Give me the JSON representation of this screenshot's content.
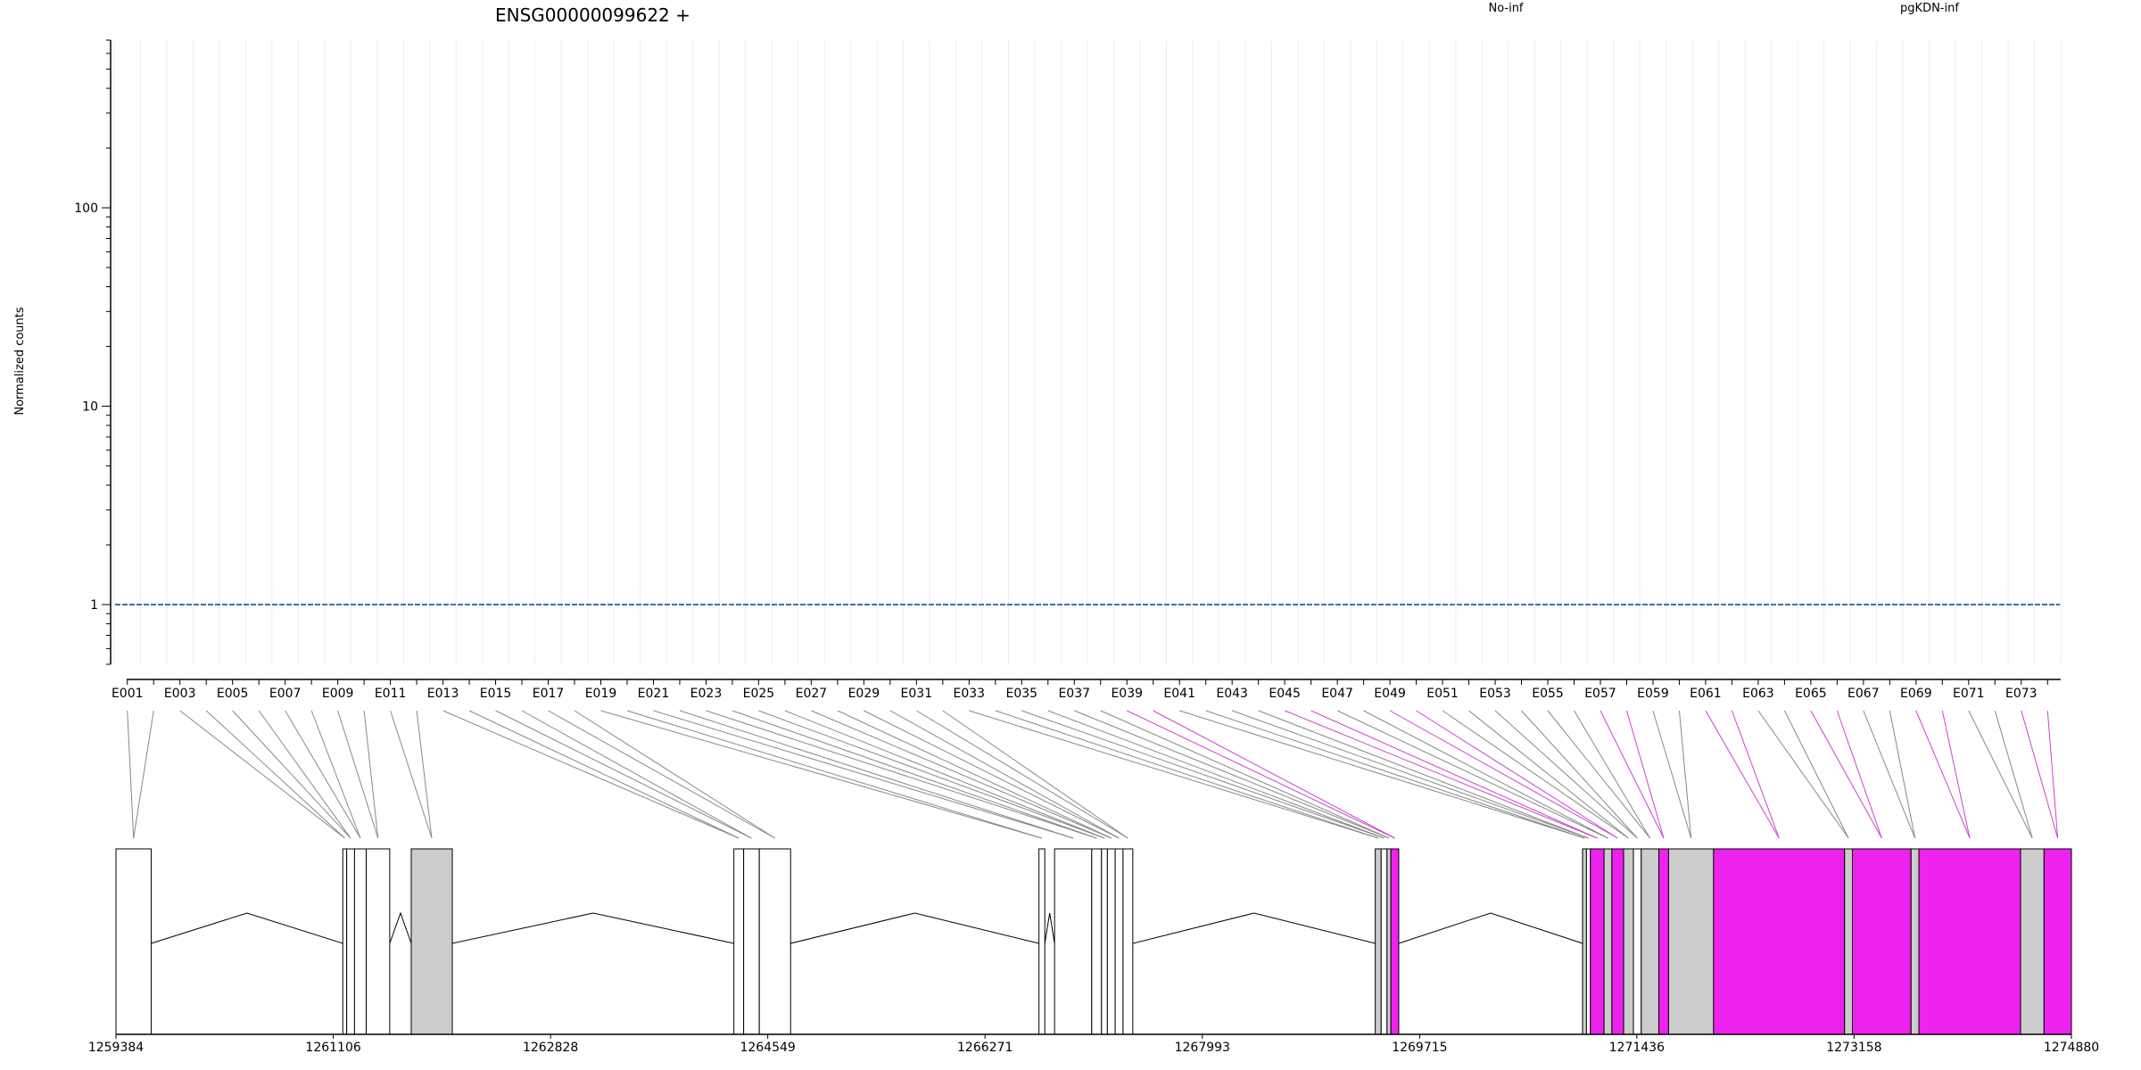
{
  "header": {
    "title": "ENSG00000099622 +",
    "legend": [
      {
        "label": "No-inf",
        "color": "#d7191c"
      },
      {
        "label": "pgKDN-inf",
        "color": "#2c7bb6"
      }
    ]
  },
  "chart_data": {
    "type": "line",
    "ylabel": "Normalized counts",
    "yscale": "log",
    "ylim": [
      0.5,
      700
    ],
    "y_ticks": [
      {
        "label": "1",
        "value": 1
      },
      {
        "label": "10",
        "value": 10
      },
      {
        "label": "100",
        "value": 100
      }
    ],
    "exon_labels": [
      "E001",
      "E003",
      "E005",
      "E007",
      "E009",
      "E011",
      "E013",
      "E015",
      "E017",
      "E019",
      "E021",
      "E023",
      "E025",
      "E027",
      "E029",
      "E031",
      "E033",
      "E035",
      "E037",
      "E039",
      "E041",
      "E043",
      "E045",
      "E047",
      "E049",
      "E051",
      "E053",
      "E055",
      "E057",
      "E059",
      "E061",
      "E063",
      "E065",
      "E067",
      "E069",
      "E071",
      "E073"
    ],
    "exon_count": 74,
    "series": [
      {
        "name": "No-inf",
        "color": "#d7191c",
        "replicates": [
          [
            1,
            1,
            1,
            1,
            1,
            1,
            1,
            1,
            1,
            1,
            1,
            1,
            1,
            1,
            1,
            1,
            1,
            1,
            1,
            1,
            1,
            1,
            1,
            1,
            1,
            1,
            1,
            1,
            1,
            1,
            1,
            1,
            1,
            1,
            1,
            1,
            1,
            1,
            1,
            1,
            1,
            1,
            1,
            1,
            1,
            1,
            1,
            1,
            1,
            1,
            1,
            1,
            1,
            1,
            1,
            1,
            1,
            1,
            1,
            1,
            1,
            1,
            1,
            1,
            1,
            1,
            1,
            1,
            1,
            1,
            1,
            1,
            1,
            1
          ],
          [
            1,
            1,
            1,
            1,
            1,
            1,
            1,
            1,
            1,
            1,
            1,
            1,
            1,
            1,
            1,
            1,
            1,
            1,
            1,
            1,
            1,
            1,
            1,
            1,
            1,
            1,
            1,
            1,
            1,
            1,
            1,
            1,
            1,
            1,
            1,
            1,
            1,
            1,
            1,
            1,
            1,
            1,
            1,
            1,
            1,
            1,
            1,
            1,
            1,
            1,
            1,
            1,
            1,
            1,
            1,
            1,
            1,
            1,
            1,
            1,
            1,
            1,
            1,
            1,
            1,
            1,
            1,
            1,
            1,
            1,
            1,
            1,
            1,
            1
          ],
          [
            1,
            1,
            1,
            1,
            1,
            1,
            1,
            1,
            1,
            1,
            1,
            1,
            1,
            1,
            1,
            1,
            1,
            1,
            1,
            1,
            1,
            1,
            1,
            1,
            1,
            1,
            1,
            1,
            1,
            1,
            1,
            1,
            1,
            1,
            1,
            1,
            1,
            1,
            1,
            1,
            1,
            1,
            1,
            1,
            1,
            1,
            1,
            1,
            1,
            1,
            1,
            1,
            1,
            1,
            1,
            1,
            1,
            1,
            1,
            1,
            1,
            1,
            1,
            1,
            1,
            1,
            1,
            1,
            1,
            1,
            1,
            1,
            1,
            1
          ],
          [
            1,
            1,
            1,
            1,
            1,
            1,
            1,
            1,
            1,
            1,
            1,
            1,
            1,
            1,
            1,
            1,
            1,
            1,
            1,
            1,
            1,
            1,
            1,
            1,
            1,
            1,
            1,
            1,
            1,
            1,
            1,
            1,
            1,
            1,
            1,
            1,
            1,
            1,
            1,
            1,
            1,
            1,
            1,
            1,
            1,
            1,
            1,
            1,
            1,
            1,
            1,
            1,
            1,
            1,
            1,
            1,
            1,
            1,
            1,
            1,
            1,
            1,
            1,
            1,
            1,
            1,
            1,
            1,
            1,
            1,
            1,
            1,
            1,
            1
          ]
        ]
      },
      {
        "name": "pgKDN-inf",
        "color": "#2c7bb6",
        "replicates": [
          [
            1,
            1,
            1,
            1,
            1,
            1,
            1,
            1,
            1,
            1,
            1,
            1,
            1,
            1,
            1,
            1,
            1,
            1,
            1,
            1,
            1,
            1,
            1,
            1,
            1,
            1,
            1,
            1,
            1,
            1,
            1,
            1,
            1,
            1,
            1,
            1,
            1,
            1,
            1,
            1,
            1,
            1,
            1,
            1,
            1,
            1,
            1,
            1,
            1,
            1,
            1,
            1,
            1,
            1,
            1,
            1,
            1,
            1,
            1,
            1,
            1,
            1,
            1,
            1,
            1,
            1,
            1,
            1,
            1,
            1,
            1,
            1,
            1,
            1
          ],
          [
            1,
            1,
            1,
            1,
            1,
            1,
            1,
            1,
            1,
            1,
            1,
            1,
            1,
            1,
            1,
            1,
            1,
            1,
            1,
            1,
            1,
            1,
            1,
            1,
            1,
            1,
            1,
            1,
            1,
            1,
            1,
            1,
            1,
            1,
            1,
            1,
            1,
            1,
            1,
            1,
            1,
            1,
            1,
            1,
            1,
            1,
            1,
            1,
            1,
            1,
            1,
            1,
            1,
            1,
            1,
            1,
            1,
            1,
            1,
            1,
            1,
            1,
            1,
            1,
            1,
            1,
            1,
            1,
            1,
            1,
            1,
            1,
            1,
            1
          ],
          [
            1,
            1,
            1,
            1,
            1,
            1,
            1,
            1,
            1,
            1,
            1,
            1,
            1,
            1,
            1,
            1,
            1,
            1,
            1,
            1,
            1,
            1,
            1,
            1,
            1,
            1,
            1,
            1,
            1,
            1,
            1,
            1,
            1,
            1,
            1,
            1,
            1,
            1,
            1,
            1,
            1,
            1,
            1,
            1,
            1,
            1,
            1,
            1,
            1,
            1,
            1,
            1,
            1,
            1,
            1,
            1,
            1,
            1,
            1,
            1,
            1,
            1,
            1,
            1,
            1,
            1,
            1,
            1,
            1,
            1,
            1,
            1,
            1,
            1
          ],
          [
            1,
            1,
            1,
            1,
            1,
            1,
            1,
            1,
            1,
            1,
            1,
            1,
            1,
            1,
            1,
            1,
            1,
            1,
            1,
            1,
            1,
            1,
            1,
            1,
            1,
            1,
            1,
            1,
            1,
            1,
            1,
            1,
            1,
            1,
            1,
            1,
            1,
            1,
            1,
            1,
            1,
            1,
            1,
            1,
            1,
            1,
            1,
            1,
            1,
            1,
            1,
            1,
            1,
            1,
            1,
            1,
            1,
            1,
            1,
            1,
            1,
            1,
            1,
            1,
            1,
            1,
            1,
            1,
            1,
            1,
            1,
            1,
            1,
            1
          ]
        ]
      }
    ],
    "genomic_axis": {
      "ticks": [
        "1259384",
        "1261106",
        "1262828",
        "1264549",
        "1266271",
        "1267993",
        "1269715",
        "1271436",
        "1273158",
        "1274880"
      ],
      "range": [
        1259384,
        1274880
      ]
    },
    "exon_fill_colors": {
      "default": "#ffffff",
      "grey": "#cccccc",
      "highlight": "#ee22ee"
    }
  }
}
